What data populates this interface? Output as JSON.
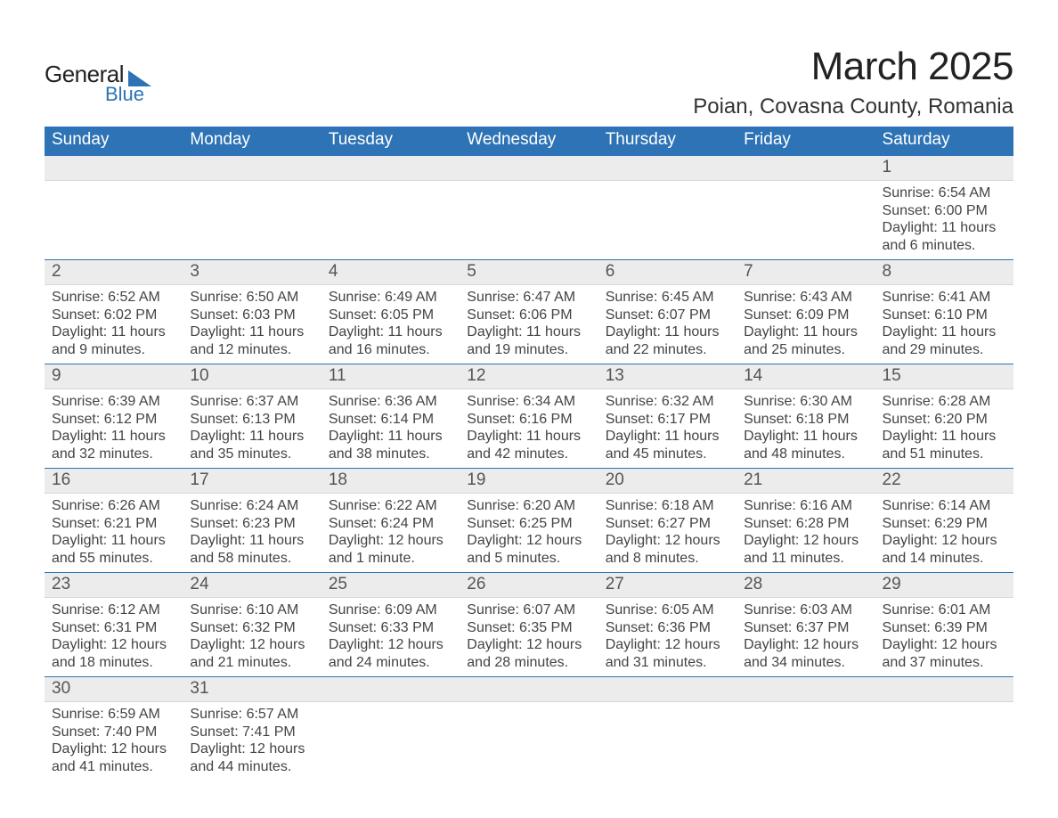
{
  "logo": {
    "line1": "General",
    "line2": "Blue",
    "accent": "#2d73b5"
  },
  "title": "March 2025",
  "location": "Poian, Covasna County, Romania",
  "day_headers": [
    "Sunday",
    "Monday",
    "Tuesday",
    "Wednesday",
    "Thursday",
    "Friday",
    "Saturday"
  ],
  "colors": {
    "header_bg": "#2d73b5",
    "header_text": "#ffffff",
    "daynum_bg": "#ececec",
    "daynum_text": "#555555",
    "body_text": "#444444",
    "rule": "#2d73b5"
  },
  "typography": {
    "title_fontsize": 44,
    "location_fontsize": 24,
    "header_fontsize": 19,
    "daynum_fontsize": 19,
    "detail_fontsize": 16
  },
  "weeks": [
    [
      null,
      null,
      null,
      null,
      null,
      null,
      {
        "n": "1",
        "sunrise": "Sunrise: 6:54 AM",
        "sunset": "Sunset: 6:00 PM",
        "daylight": "Daylight: 11 hours and 6 minutes."
      }
    ],
    [
      {
        "n": "2",
        "sunrise": "Sunrise: 6:52 AM",
        "sunset": "Sunset: 6:02 PM",
        "daylight": "Daylight: 11 hours and 9 minutes."
      },
      {
        "n": "3",
        "sunrise": "Sunrise: 6:50 AM",
        "sunset": "Sunset: 6:03 PM",
        "daylight": "Daylight: 11 hours and 12 minutes."
      },
      {
        "n": "4",
        "sunrise": "Sunrise: 6:49 AM",
        "sunset": "Sunset: 6:05 PM",
        "daylight": "Daylight: 11 hours and 16 minutes."
      },
      {
        "n": "5",
        "sunrise": "Sunrise: 6:47 AM",
        "sunset": "Sunset: 6:06 PM",
        "daylight": "Daylight: 11 hours and 19 minutes."
      },
      {
        "n": "6",
        "sunrise": "Sunrise: 6:45 AM",
        "sunset": "Sunset: 6:07 PM",
        "daylight": "Daylight: 11 hours and 22 minutes."
      },
      {
        "n": "7",
        "sunrise": "Sunrise: 6:43 AM",
        "sunset": "Sunset: 6:09 PM",
        "daylight": "Daylight: 11 hours and 25 minutes."
      },
      {
        "n": "8",
        "sunrise": "Sunrise: 6:41 AM",
        "sunset": "Sunset: 6:10 PM",
        "daylight": "Daylight: 11 hours and 29 minutes."
      }
    ],
    [
      {
        "n": "9",
        "sunrise": "Sunrise: 6:39 AM",
        "sunset": "Sunset: 6:12 PM",
        "daylight": "Daylight: 11 hours and 32 minutes."
      },
      {
        "n": "10",
        "sunrise": "Sunrise: 6:37 AM",
        "sunset": "Sunset: 6:13 PM",
        "daylight": "Daylight: 11 hours and 35 minutes."
      },
      {
        "n": "11",
        "sunrise": "Sunrise: 6:36 AM",
        "sunset": "Sunset: 6:14 PM",
        "daylight": "Daylight: 11 hours and 38 minutes."
      },
      {
        "n": "12",
        "sunrise": "Sunrise: 6:34 AM",
        "sunset": "Sunset: 6:16 PM",
        "daylight": "Daylight: 11 hours and 42 minutes."
      },
      {
        "n": "13",
        "sunrise": "Sunrise: 6:32 AM",
        "sunset": "Sunset: 6:17 PM",
        "daylight": "Daylight: 11 hours and 45 minutes."
      },
      {
        "n": "14",
        "sunrise": "Sunrise: 6:30 AM",
        "sunset": "Sunset: 6:18 PM",
        "daylight": "Daylight: 11 hours and 48 minutes."
      },
      {
        "n": "15",
        "sunrise": "Sunrise: 6:28 AM",
        "sunset": "Sunset: 6:20 PM",
        "daylight": "Daylight: 11 hours and 51 minutes."
      }
    ],
    [
      {
        "n": "16",
        "sunrise": "Sunrise: 6:26 AM",
        "sunset": "Sunset: 6:21 PM",
        "daylight": "Daylight: 11 hours and 55 minutes."
      },
      {
        "n": "17",
        "sunrise": "Sunrise: 6:24 AM",
        "sunset": "Sunset: 6:23 PM",
        "daylight": "Daylight: 11 hours and 58 minutes."
      },
      {
        "n": "18",
        "sunrise": "Sunrise: 6:22 AM",
        "sunset": "Sunset: 6:24 PM",
        "daylight": "Daylight: 12 hours and 1 minute."
      },
      {
        "n": "19",
        "sunrise": "Sunrise: 6:20 AM",
        "sunset": "Sunset: 6:25 PM",
        "daylight": "Daylight: 12 hours and 5 minutes."
      },
      {
        "n": "20",
        "sunrise": "Sunrise: 6:18 AM",
        "sunset": "Sunset: 6:27 PM",
        "daylight": "Daylight: 12 hours and 8 minutes."
      },
      {
        "n": "21",
        "sunrise": "Sunrise: 6:16 AM",
        "sunset": "Sunset: 6:28 PM",
        "daylight": "Daylight: 12 hours and 11 minutes."
      },
      {
        "n": "22",
        "sunrise": "Sunrise: 6:14 AM",
        "sunset": "Sunset: 6:29 PM",
        "daylight": "Daylight: 12 hours and 14 minutes."
      }
    ],
    [
      {
        "n": "23",
        "sunrise": "Sunrise: 6:12 AM",
        "sunset": "Sunset: 6:31 PM",
        "daylight": "Daylight: 12 hours and 18 minutes."
      },
      {
        "n": "24",
        "sunrise": "Sunrise: 6:10 AM",
        "sunset": "Sunset: 6:32 PM",
        "daylight": "Daylight: 12 hours and 21 minutes."
      },
      {
        "n": "25",
        "sunrise": "Sunrise: 6:09 AM",
        "sunset": "Sunset: 6:33 PM",
        "daylight": "Daylight: 12 hours and 24 minutes."
      },
      {
        "n": "26",
        "sunrise": "Sunrise: 6:07 AM",
        "sunset": "Sunset: 6:35 PM",
        "daylight": "Daylight: 12 hours and 28 minutes."
      },
      {
        "n": "27",
        "sunrise": "Sunrise: 6:05 AM",
        "sunset": "Sunset: 6:36 PM",
        "daylight": "Daylight: 12 hours and 31 minutes."
      },
      {
        "n": "28",
        "sunrise": "Sunrise: 6:03 AM",
        "sunset": "Sunset: 6:37 PM",
        "daylight": "Daylight: 12 hours and 34 minutes."
      },
      {
        "n": "29",
        "sunrise": "Sunrise: 6:01 AM",
        "sunset": "Sunset: 6:39 PM",
        "daylight": "Daylight: 12 hours and 37 minutes."
      }
    ],
    [
      {
        "n": "30",
        "sunrise": "Sunrise: 6:59 AM",
        "sunset": "Sunset: 7:40 PM",
        "daylight": "Daylight: 12 hours and 41 minutes."
      },
      {
        "n": "31",
        "sunrise": "Sunrise: 6:57 AM",
        "sunset": "Sunset: 7:41 PM",
        "daylight": "Daylight: 12 hours and 44 minutes."
      },
      null,
      null,
      null,
      null,
      null
    ]
  ]
}
